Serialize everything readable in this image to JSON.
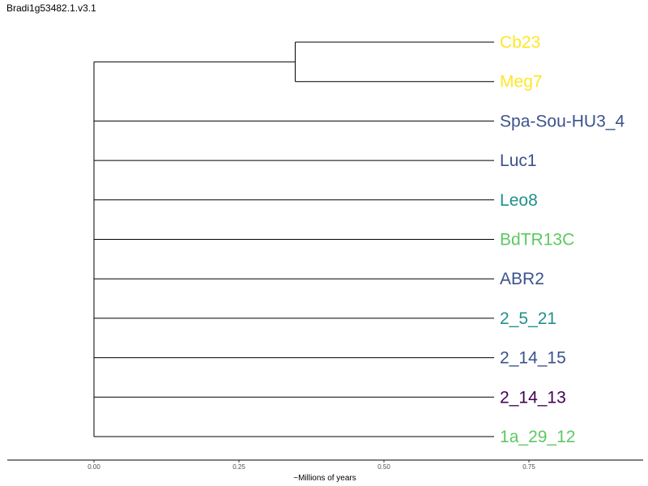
{
  "title": "Bradi1g53482.1.v3.1",
  "tree": {
    "tips": [
      {
        "label": "Cb23",
        "color": "#FDE725"
      },
      {
        "label": "Meg7",
        "color": "#FDE725"
      },
      {
        "label": "Spa-Sou-HU3_4",
        "color": "#3B528B"
      },
      {
        "label": "Luc1",
        "color": "#3B528B"
      },
      {
        "label": "Leo8",
        "color": "#21908C"
      },
      {
        "label": "BdTR13C",
        "color": "#5DC863"
      },
      {
        "label": "ABR2",
        "color": "#3B528B"
      },
      {
        "label": "2_5_21",
        "color": "#21908C"
      },
      {
        "label": "2_14_15",
        "color": "#3B528B"
      },
      {
        "label": "2_14_13",
        "color": "#440154"
      },
      {
        "label": "1a_29_12",
        "color": "#5DC863"
      }
    ],
    "branch_color": "#000000",
    "clade_node_age": 0.347,
    "tip_age": 0.69
  },
  "axis": {
    "label": "~Millions of years",
    "ticks": [
      "0.00",
      "0.25",
      "0.50",
      "0.75"
    ],
    "tick_values": [
      0,
      0.25,
      0.5,
      0.75
    ],
    "range": [
      -0.15,
      0.95
    ]
  }
}
